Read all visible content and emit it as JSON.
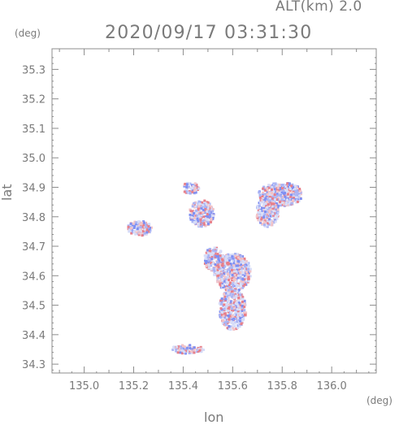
{
  "header": {
    "altitude_label": "ALT(km)  2.0",
    "timestamp": "2020/09/17 03:31:30"
  },
  "axes": {
    "y_unit": "(deg)",
    "x_unit": "(deg)",
    "xlabel": "lon",
    "ylabel": "lat",
    "x_ticks": [
      "135.0",
      "135.2",
      "135.4",
      "135.6",
      "135.8",
      "136.0"
    ],
    "y_ticks": [
      "35.3",
      "35.2",
      "35.1",
      "35.0",
      "34.9",
      "34.8",
      "34.7",
      "34.6",
      "34.5",
      "34.4",
      "34.3"
    ],
    "x_range": [
      134.87,
      136.18
    ],
    "y_range": [
      34.27,
      35.37
    ]
  },
  "colors": {
    "frame": "#8c8c8c",
    "positive": "#e8808a",
    "negative": "#7f8ff2",
    "pale": "#d6dcf8"
  },
  "echo_regions": [
    {
      "lon": [
        135.52,
        135.67
      ],
      "lat": [
        34.55,
        34.68
      ]
    },
    {
      "lon": [
        135.54,
        135.65
      ],
      "lat": [
        34.42,
        34.56
      ]
    },
    {
      "lon": [
        135.48,
        135.56
      ],
      "lat": [
        34.62,
        34.7
      ]
    },
    {
      "lon": [
        135.7,
        135.88
      ],
      "lat": [
        34.84,
        34.92
      ]
    },
    {
      "lon": [
        135.69,
        135.78
      ],
      "lat": [
        34.77,
        34.87
      ]
    },
    {
      "lon": [
        135.17,
        135.27
      ],
      "lat": [
        34.74,
        34.79
      ]
    },
    {
      "lon": [
        135.39,
        135.46
      ],
      "lat": [
        34.88,
        34.92
      ]
    },
    {
      "lon": [
        135.35,
        135.48
      ],
      "lat": [
        34.34,
        34.37
      ]
    },
    {
      "lon": [
        135.42,
        135.52
      ],
      "lat": [
        34.77,
        34.86
      ]
    }
  ]
}
